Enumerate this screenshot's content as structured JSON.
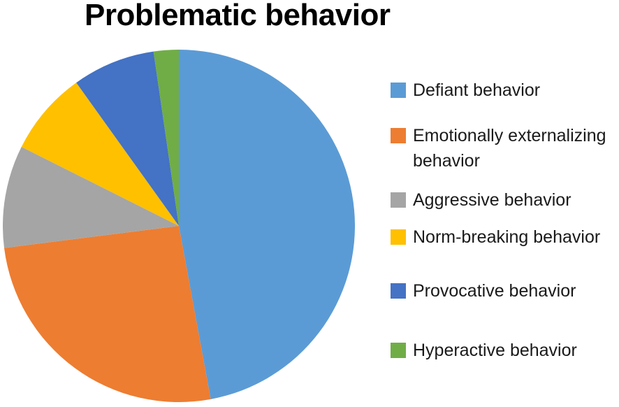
{
  "title": "Problematic behavior",
  "chart_data": {
    "type": "pie",
    "title": "Problematic behavior",
    "start_angle_deg": 0,
    "direction": "clockwise",
    "legend_position": "right",
    "data_labels": "none",
    "background_color": "#FFFFFF",
    "slices": [
      {
        "label": "Defiant behavior",
        "value_pct": 47.1,
        "color": "#5B9BD5"
      },
      {
        "label": "Emotionally externalizing behavior",
        "value_pct": 25.9,
        "color": "#ED7D31"
      },
      {
        "label": "Aggressive behavior",
        "value_pct": 9.4,
        "color": "#A5A5A5"
      },
      {
        "label": "Norm-breaking behavior",
        "value_pct": 7.7,
        "color": "#FFC000"
      },
      {
        "label": "Provocative behavior",
        "value_pct": 7.6,
        "color": "#4472C4"
      },
      {
        "label": "Hyperactive behavior",
        "value_pct": 2.3,
        "color": "#70AD47"
      }
    ]
  }
}
